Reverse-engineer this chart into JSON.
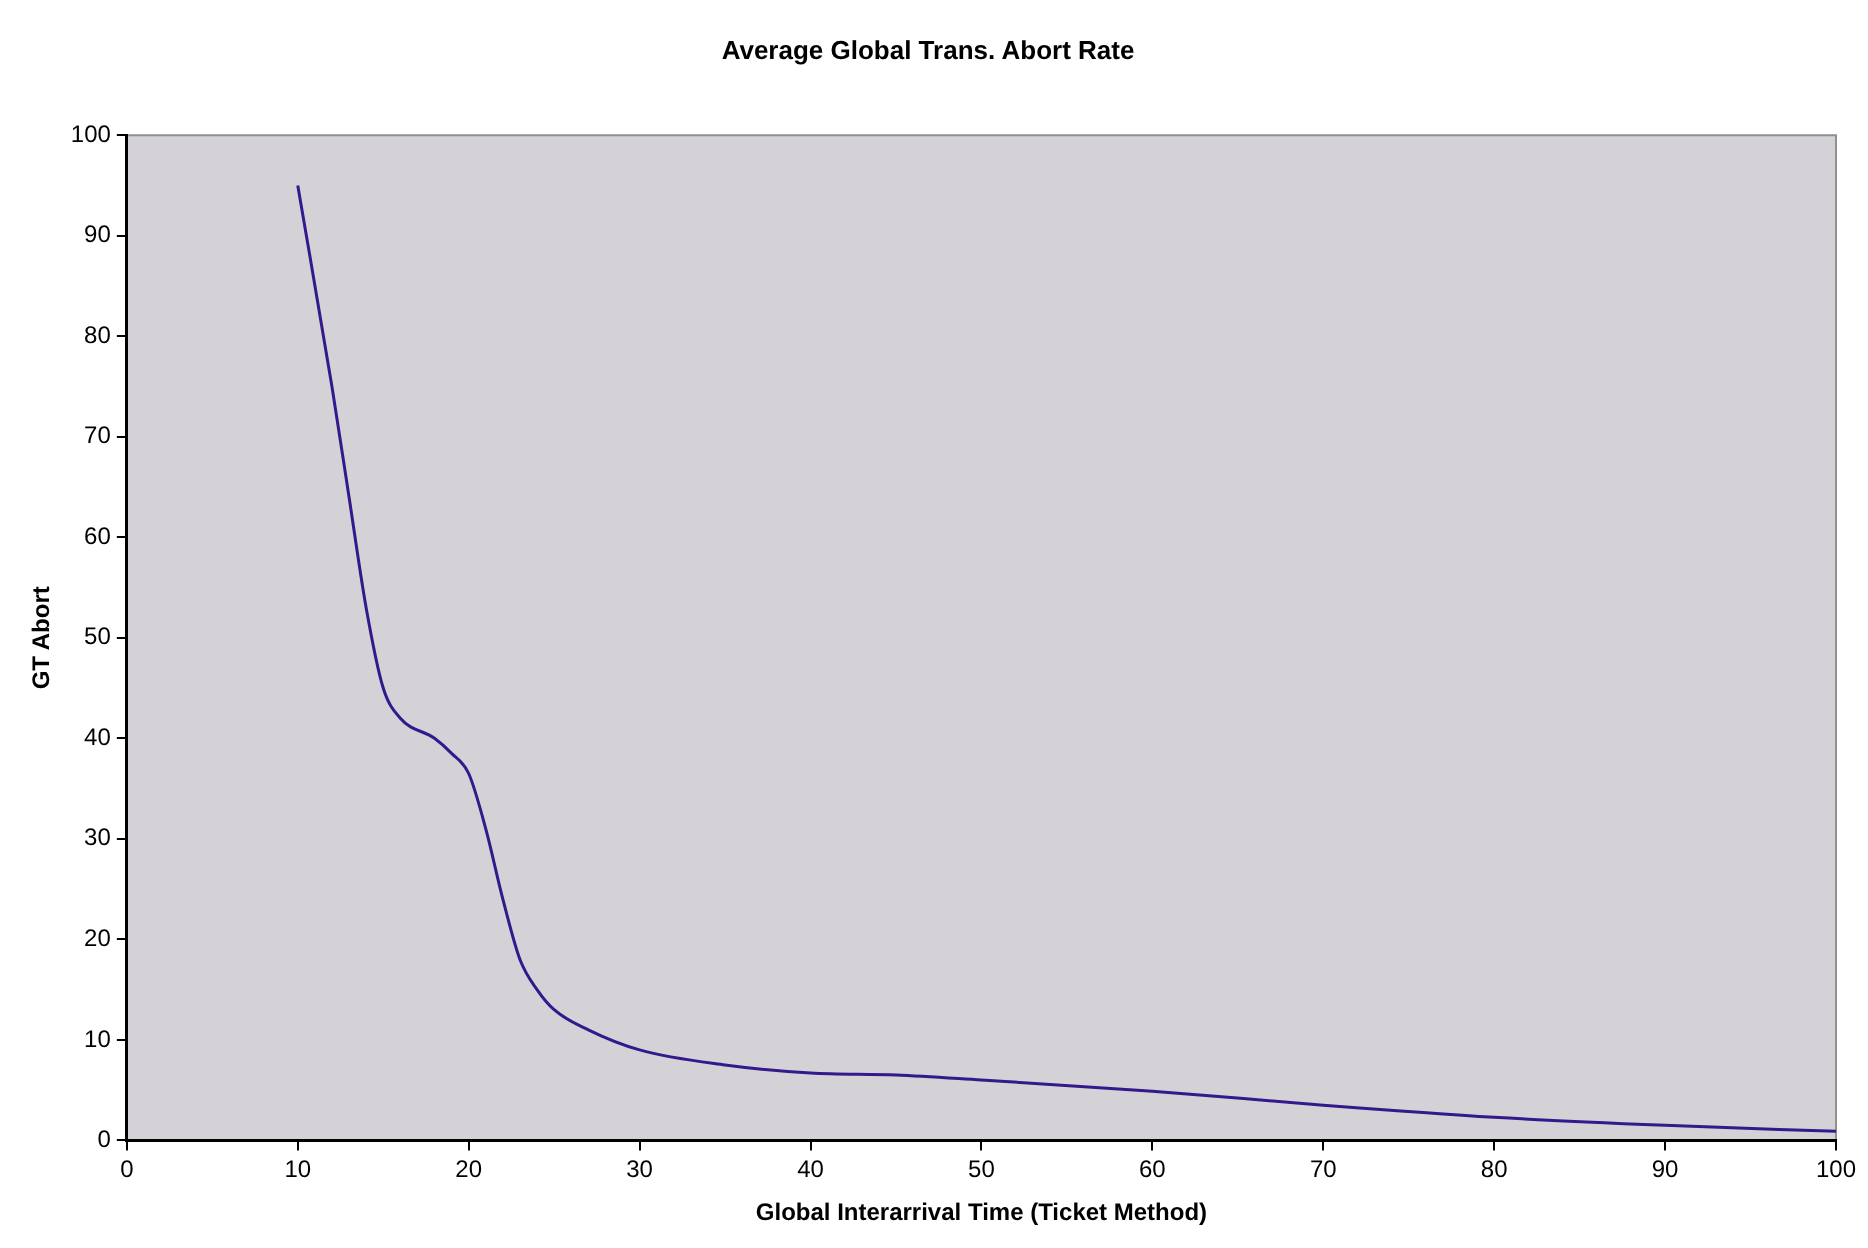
{
  "chart_data": {
    "type": "line",
    "title": "Average Global Trans. Abort Rate",
    "xlabel": "Global Interarrival Time (Ticket Method)",
    "ylabel": "GT Abort",
    "x": [
      10,
      12,
      13,
      14,
      15,
      16,
      18,
      19,
      20,
      21,
      22,
      23,
      24,
      25,
      27,
      30,
      35,
      40,
      45,
      50,
      60,
      70,
      80,
      90,
      100
    ],
    "series": [
      {
        "color": "#33198c",
        "values": [
          95,
          75,
          64,
          53,
          45,
          42,
          40,
          38.5,
          36.5,
          31,
          24,
          18,
          15,
          13,
          11,
          9,
          7.5,
          6.7,
          6.5,
          6,
          4.9,
          3.5,
          2.3,
          1.5,
          0.9
        ]
      }
    ],
    "xlim": [
      0,
      100
    ],
    "xticks": [
      0,
      10,
      20,
      30,
      40,
      50,
      60,
      70,
      80,
      90,
      100
    ],
    "ylim": [
      0,
      100
    ],
    "yticks": [
      0,
      10,
      20,
      30,
      40,
      50,
      60,
      70,
      80,
      90,
      100
    ],
    "grid": false,
    "legend": false,
    "marker": "none",
    "line_style": "solid"
  }
}
